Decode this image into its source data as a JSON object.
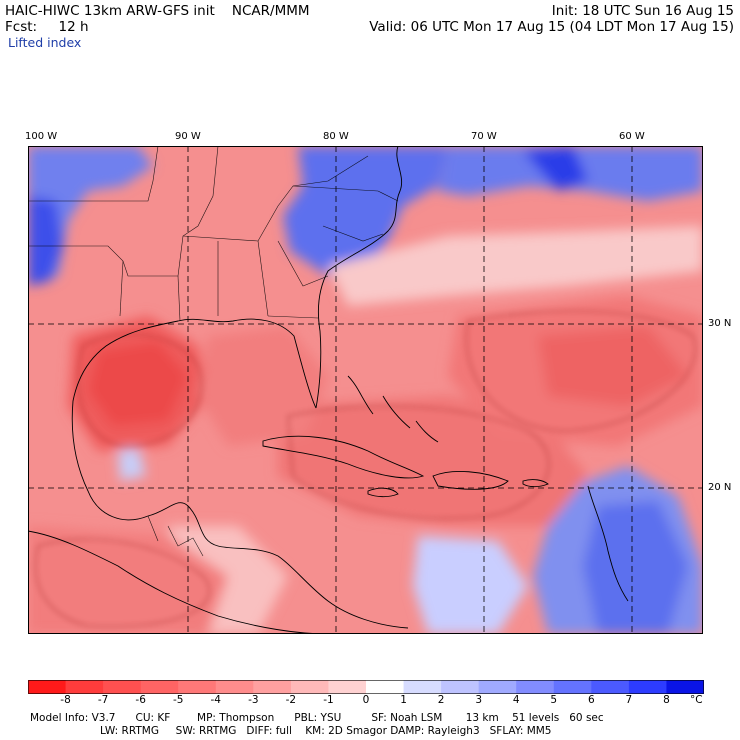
{
  "header": {
    "title": "HAIC-HIWC 13km ARW-GFS init    NCAR/MMM",
    "forecast": "Fcst:     12 h",
    "variable": "Lifted index",
    "init": "Init: 18 UTC Sun 16 Aug 15",
    "valid": "Valid: 06 UTC Mon 17 Aug 15 (04 LDT Mon 17 Aug 15)"
  },
  "map": {
    "longitude_labels": [
      "100 W",
      "90 W",
      "80 W",
      "70 W",
      "60 W"
    ],
    "latitude_labels": [
      "30 N",
      "20 N"
    ],
    "colors": {
      "unstable": "#f06a6a",
      "stable": "#5a6ef0",
      "border": "#000000"
    }
  },
  "colorbar": {
    "labels": [
      "-8",
      "-7",
      "-6",
      "-5",
      "-4",
      "-3",
      "-2",
      "-1",
      "0",
      "1",
      "2",
      "3",
      "4",
      "5",
      "6",
      "7",
      "8"
    ],
    "unit": "°C",
    "colors": [
      "#ff1a1a",
      "#ff3c3c",
      "#ff5050",
      "#ff6464",
      "#ff7878",
      "#ff8c8c",
      "#ffa0a0",
      "#ffb9b9",
      "#ffd2d2",
      "#ffffff",
      "#d7dcff",
      "#bec3ff",
      "#a0aaff",
      "#828cff",
      "#6473ff",
      "#4b5aff",
      "#2d3cff",
      "#0a14e6"
    ]
  },
  "footer": {
    "line1": "Model Info: V3.7      CU: KF        MP: Thompson      PBL: YSU         SF: Noah LSM       13 km    51 levels   60 sec",
    "line2": "LW: RRTMG     SW: RRTMG   DIFF: full    KM: 2D Smagor DAMP: Rayleigh3   SFLAY: MM5"
  }
}
